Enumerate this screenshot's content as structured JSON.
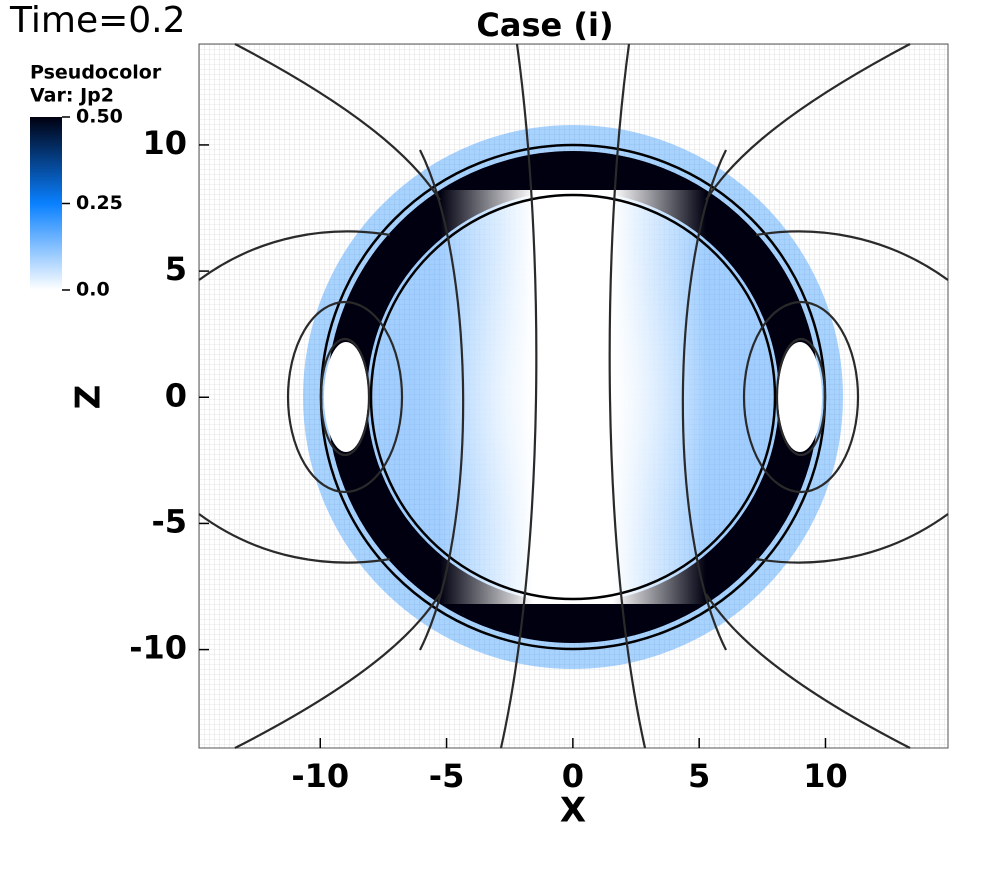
{
  "time_label": "Time=0.2",
  "chart_data": {
    "type": "pseudocolor",
    "title": "Case (i)",
    "xlabel": "X",
    "ylabel": "Z",
    "xlim": [
      -14.8,
      14.85
    ],
    "ylim": [
      -13.9,
      14.0
    ],
    "xticks": [
      -10,
      -5,
      0,
      5,
      10
    ],
    "yticks": [
      -10,
      -5,
      0,
      5,
      10
    ],
    "colorbar": {
      "title": "Pseudocolor",
      "variable": "Var: Jp2",
      "clim": [
        0,
        0.5
      ],
      "ticks": [
        {
          "value": 0.5,
          "label": "0.50"
        },
        0.25,
        {
          "value": 0,
          "label": "0.0"
        }
      ],
      "colors": [
        "#ffffff",
        "#0a80ff",
        "#000010"
      ]
    }
  }
}
